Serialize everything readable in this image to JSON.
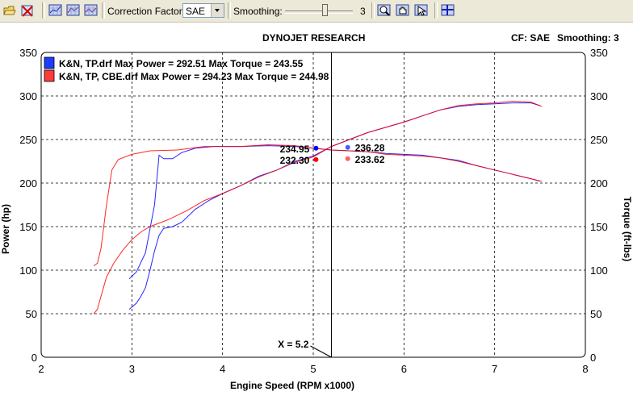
{
  "toolbar": {
    "correction_factor_label": "Correction Factor:",
    "correction_factor_value": "SAE",
    "smoothing_label": "Smoothing:",
    "smoothing_value": "3",
    "buttons": [
      "open-folder-icon",
      "clear-runs-icon",
      "graph-view-1-icon",
      "graph-view-2-icon",
      "graph-view-3-icon",
      "zoom-icon",
      "hand-pan-icon",
      "cursor-select-icon",
      "grid-icon"
    ]
  },
  "header": {
    "title": "DYNOJET RESEARCH",
    "cf_text": "CF: SAE",
    "smoothing_text": "Smoothing: 3"
  },
  "chart_data": {
    "type": "line",
    "xlabel": "Engine Speed (RPM x1000)",
    "ylabel_left": "Power (hp)",
    "ylabel_right": "Torque (ft-lbs)",
    "xlim": [
      2,
      8
    ],
    "ylim": [
      0,
      350
    ],
    "x_ticks": [
      "2",
      "3",
      "4",
      "5",
      "6",
      "7",
      "8"
    ],
    "y_ticks": [
      "0",
      "50",
      "100",
      "150",
      "200",
      "250",
      "300",
      "350"
    ],
    "grid": true,
    "legend_position": "top-left",
    "cursor": {
      "x": 5.2,
      "label": "X = 5.2"
    },
    "series": [
      {
        "name": "K&N, TP.drf Max Power = 292.51 Max Torque = 243.55",
        "color": "#0000ff",
        "swatch_color": "#1e3cff",
        "power": [
          [
            2.97,
            55
          ],
          [
            3.05,
            62
          ],
          [
            3.1,
            70
          ],
          [
            3.15,
            80
          ],
          [
            3.2,
            100
          ],
          [
            3.25,
            122
          ],
          [
            3.3,
            140
          ],
          [
            3.35,
            148
          ],
          [
            3.45,
            150
          ],
          [
            3.55,
            155
          ],
          [
            3.7,
            170
          ],
          [
            3.85,
            180
          ],
          [
            4.0,
            188
          ],
          [
            4.2,
            197
          ],
          [
            4.4,
            208
          ],
          [
            4.6,
            215
          ],
          [
            4.8,
            225
          ],
          [
            5.0,
            231
          ],
          [
            5.2,
            242
          ],
          [
            5.4,
            250
          ],
          [
            5.6,
            258
          ],
          [
            5.8,
            264
          ],
          [
            6.0,
            270
          ],
          [
            6.2,
            277
          ],
          [
            6.4,
            284
          ],
          [
            6.6,
            288
          ],
          [
            6.8,
            290
          ],
          [
            7.0,
            291
          ],
          [
            7.2,
            292
          ],
          [
            7.4,
            292
          ],
          [
            7.5,
            289
          ]
        ],
        "torque": [
          [
            2.97,
            90
          ],
          [
            3.05,
            98
          ],
          [
            3.15,
            120
          ],
          [
            3.25,
            175
          ],
          [
            3.3,
            232
          ],
          [
            3.35,
            228
          ],
          [
            3.45,
            228
          ],
          [
            3.55,
            235
          ],
          [
            3.7,
            240
          ],
          [
            3.9,
            242
          ],
          [
            4.2,
            242
          ],
          [
            4.5,
            243
          ],
          [
            4.8,
            242
          ],
          [
            5.0,
            240
          ],
          [
            5.2,
            238
          ],
          [
            5.4,
            237
          ],
          [
            5.6,
            236
          ],
          [
            5.8,
            234
          ],
          [
            6.0,
            233
          ],
          [
            6.2,
            232
          ],
          [
            6.4,
            229
          ],
          [
            6.6,
            226
          ],
          [
            6.8,
            220
          ],
          [
            7.0,
            215
          ],
          [
            7.2,
            210
          ],
          [
            7.4,
            205
          ],
          [
            7.5,
            202
          ]
        ]
      },
      {
        "name": "K&N, TP, CBE.drf Max Power = 294.23 Max Torque = 244.98",
        "color": "#ff0000",
        "swatch_color": "#ff3c3c",
        "power": [
          [
            2.58,
            50
          ],
          [
            2.62,
            55
          ],
          [
            2.66,
            70
          ],
          [
            2.72,
            92
          ],
          [
            2.8,
            108
          ],
          [
            2.9,
            123
          ],
          [
            3.0,
            135
          ],
          [
            3.1,
            144
          ],
          [
            3.2,
            150
          ],
          [
            3.4,
            158
          ],
          [
            3.6,
            168
          ],
          [
            3.8,
            180
          ],
          [
            4.0,
            188
          ],
          [
            4.2,
            197
          ],
          [
            4.4,
            207
          ],
          [
            4.6,
            215
          ],
          [
            4.8,
            224
          ],
          [
            5.0,
            230
          ],
          [
            5.2,
            242
          ],
          [
            5.4,
            250
          ],
          [
            5.6,
            258
          ],
          [
            5.8,
            264
          ],
          [
            6.0,
            270
          ],
          [
            6.2,
            277
          ],
          [
            6.4,
            284
          ],
          [
            6.6,
            289
          ],
          [
            6.8,
            291
          ],
          [
            7.0,
            292
          ],
          [
            7.2,
            294
          ],
          [
            7.4,
            293
          ],
          [
            7.52,
            288
          ]
        ],
        "torque": [
          [
            2.58,
            105
          ],
          [
            2.62,
            108
          ],
          [
            2.66,
            125
          ],
          [
            2.72,
            175
          ],
          [
            2.78,
            215
          ],
          [
            2.85,
            227
          ],
          [
            3.0,
            233
          ],
          [
            3.2,
            237
          ],
          [
            3.5,
            238
          ],
          [
            3.8,
            242
          ],
          [
            4.2,
            242
          ],
          [
            4.5,
            244
          ],
          [
            4.8,
            243
          ],
          [
            5.0,
            240
          ],
          [
            5.2,
            238
          ],
          [
            5.4,
            237
          ],
          [
            5.6,
            236
          ],
          [
            5.8,
            233
          ],
          [
            6.0,
            232
          ],
          [
            6.2,
            231
          ],
          [
            6.4,
            229
          ],
          [
            6.6,
            225
          ],
          [
            6.8,
            220
          ],
          [
            7.0,
            215
          ],
          [
            7.2,
            210
          ],
          [
            7.4,
            205
          ],
          [
            7.52,
            202
          ]
        ]
      }
    ],
    "point_labels": [
      {
        "text": "234.95",
        "x": 5.03,
        "y": 240,
        "color": "#0000ff",
        "side": "left"
      },
      {
        "text": "232.30",
        "x": 5.03,
        "y": 227,
        "color": "#ff0000",
        "side": "left"
      },
      {
        "text": "236.28",
        "x": 5.38,
        "y": 241,
        "color": "#4060ff",
        "side": "right"
      },
      {
        "text": "233.62",
        "x": 5.38,
        "y": 228,
        "color": "#ff6060",
        "side": "right"
      }
    ]
  }
}
